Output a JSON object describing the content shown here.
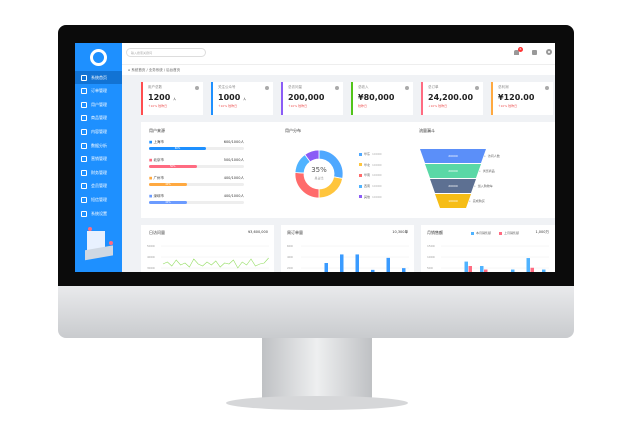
{
  "search": {
    "placeholder": "输入搜索关键词"
  },
  "header": {
    "notification_count": "6"
  },
  "breadcrumb": [
    "系统首页",
    "业务系统",
    "后台首页"
  ],
  "sidebar": {
    "items": [
      "系统首页",
      "订单管理",
      "用户管理",
      "商品管理",
      "内容管理",
      "数据分析",
      "营销管理",
      "财务管理",
      "会员管理",
      "短信管理",
      "系统设置"
    ]
  },
  "cards": [
    {
      "title": "用户总数",
      "value": "1200",
      "unit": "人",
      "sub": "↑10% 较昨日",
      "color": "#ff4d4f"
    },
    {
      "title": "关注公众号",
      "value": "1000",
      "unit": "人",
      "sub": "↑10% 较昨日",
      "color": "#1e90ff"
    },
    {
      "title": "总访问量",
      "value": "200,000",
      "unit": "",
      "sub": "↑10% 较昨日",
      "color": "#8b5cf6"
    },
    {
      "title": "总收入",
      "value": "¥80,000",
      "unit": "",
      "sub": "较昨日",
      "color": "#52c41a"
    },
    {
      "title": "总订单",
      "value": "24,200.00",
      "unit": "",
      "sub": "↓10% 较昨日",
      "color": "#ff6b81"
    },
    {
      "title": "总利润",
      "value": "¥120.00",
      "unit": "",
      "sub": "↑10% 较昨日",
      "color": "#ffa940"
    }
  ],
  "region": {
    "title": "用户来源",
    "items": [
      {
        "label": "上海市",
        "value": "600/1000人",
        "percent": 60,
        "pct_label": "60%",
        "color": "#1e90ff"
      },
      {
        "label": "北京市",
        "value": "500/1000人",
        "percent": 50,
        "pct_label": "50%",
        "color": "#ff6b81"
      },
      {
        "label": "广州市",
        "value": "400/1000人",
        "percent": 40,
        "pct_label": "40%",
        "color": "#ffa940"
      },
      {
        "label": "深圳市",
        "value": "400/1000人",
        "percent": 40,
        "pct_label": "40%",
        "color": "#6b9bff"
      }
    ]
  },
  "donut": {
    "title": "用户分布",
    "center": "35%",
    "center_sub": "总占比",
    "items": [
      {
        "label": "华东",
        "value": "10000",
        "color": "#4fa8ff"
      },
      {
        "label": "华北",
        "value": "10000",
        "color": "#ffc53d"
      },
      {
        "label": "华南",
        "value": "10000",
        "color": "#ff6b6b"
      },
      {
        "label": "西南",
        "value": "10000",
        "color": "#4fb3ff"
      },
      {
        "label": "其他",
        "value": "10000",
        "color": "#8b5cf6"
      }
    ]
  },
  "funnel": {
    "title": "流量漏斗",
    "items": [
      {
        "value": "20000",
        "label": "访问人数",
        "color": "#5b8ff9"
      },
      {
        "value": "20000",
        "label": "浏览商品",
        "color": "#5ad8a6"
      },
      {
        "value": "20000",
        "label": "加入购物车",
        "color": "#5d7092"
      },
      {
        "value": "10000",
        "label": "完成购买",
        "color": "#f6bd16"
      }
    ]
  },
  "daily": {
    "title": "日访问量",
    "total": "¥3,600,000",
    "ticks": [
      "5000",
      "4000",
      "3000"
    ]
  },
  "weekly": {
    "title": "周订单量",
    "total": "10,300单",
    "ticks": [
      "600",
      "400",
      "200"
    ],
    "values": [
      200,
      420,
      620,
      620,
      260,
      540,
      300
    ]
  },
  "monthly": {
    "title": "月销售额",
    "total": "1,000万",
    "ticks": [
      "1500",
      "1000",
      "500"
    ],
    "legend": [
      "本月销售额",
      "上月销售额"
    ],
    "this_month": [
      0,
      1100,
      850,
      0,
      650,
      1300,
      650
    ],
    "last_month": [
      400,
      850,
      650,
      400,
      400,
      750,
      150
    ]
  }
}
